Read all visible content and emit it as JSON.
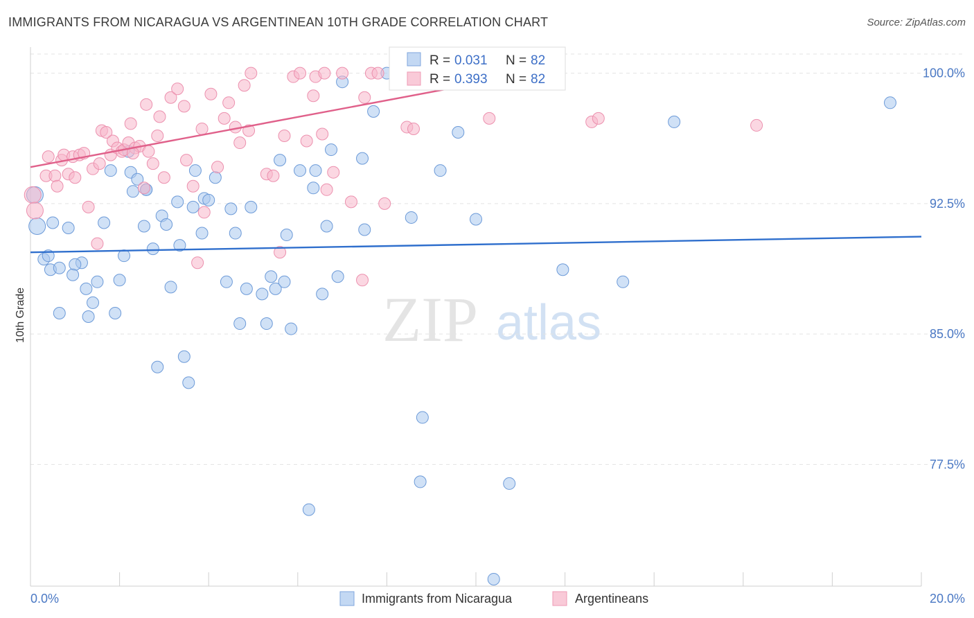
{
  "header": {
    "title": "IMMIGRANTS FROM NICARAGUA VS ARGENTINEAN 10TH GRADE CORRELATION CHART",
    "source": "Source: ZipAtlas.com"
  },
  "watermark": {
    "zip": "ZIP",
    "atlas": "atlas"
  },
  "legend_top": [
    {
      "r_label": "R =",
      "r_value": "0.031",
      "n_label": "N =",
      "n_value": "82"
    },
    {
      "r_label": "R =",
      "r_value": "0.393",
      "n_label": "N =",
      "n_value": "82"
    }
  ],
  "legend_bottom": [
    "Immigrants from Nicaragua",
    "Argentineans"
  ],
  "chart_data": {
    "type": "scatter",
    "xlabel": "",
    "ylabel": "10th Grade",
    "xlim": [
      0,
      20
    ],
    "ylim": [
      70.5,
      101.5
    ],
    "x_tick_labels": [
      "0.0%",
      "20.0%"
    ],
    "y_ticks": [
      77.5,
      85.0,
      92.5,
      100.0
    ],
    "y_tick_labels": [
      "77.5%",
      "85.0%",
      "92.5%",
      "100.0%"
    ],
    "colors": {
      "nicaragua": "#a9c8ee",
      "nicaragua_line": "#2f6fcd",
      "argentinean": "#f7b7cb",
      "argentinean_line": "#e0608a"
    },
    "series": [
      {
        "name": "Immigrants from Nicaragua",
        "trend": [
          [
            0,
            89.7
          ],
          [
            20,
            90.6
          ]
        ],
        "points": [
          [
            0.1,
            93.0
          ],
          [
            0.15,
            91.2
          ],
          [
            0.3,
            89.3
          ],
          [
            0.4,
            89.5
          ],
          [
            0.5,
            91.4
          ],
          [
            0.45,
            88.7
          ],
          [
            0.65,
            88.8
          ],
          [
            0.85,
            91.1
          ],
          [
            1.15,
            89.1
          ],
          [
            1.25,
            87.6
          ],
          [
            1.5,
            88.0
          ],
          [
            1.65,
            91.4
          ],
          [
            1.8,
            94.4
          ],
          [
            2.0,
            88.1
          ],
          [
            2.1,
            89.5
          ],
          [
            2.2,
            95.5
          ],
          [
            2.25,
            94.3
          ],
          [
            2.3,
            93.2
          ],
          [
            2.4,
            93.9
          ],
          [
            2.55,
            91.2
          ],
          [
            2.6,
            93.3
          ],
          [
            2.75,
            89.9
          ],
          [
            2.95,
            91.8
          ],
          [
            3.05,
            91.3
          ],
          [
            3.15,
            87.7
          ],
          [
            3.3,
            92.6
          ],
          [
            3.35,
            90.1
          ],
          [
            3.65,
            92.3
          ],
          [
            3.7,
            94.4
          ],
          [
            3.85,
            90.8
          ],
          [
            3.9,
            92.8
          ],
          [
            4.0,
            92.7
          ],
          [
            4.15,
            94.0
          ],
          [
            4.4,
            88.0
          ],
          [
            4.5,
            92.2
          ],
          [
            4.6,
            90.8
          ],
          [
            4.7,
            85.6
          ],
          [
            4.85,
            87.6
          ],
          [
            4.95,
            92.3
          ],
          [
            5.2,
            87.3
          ],
          [
            5.3,
            85.6
          ],
          [
            5.4,
            88.3
          ],
          [
            5.5,
            87.6
          ],
          [
            5.6,
            95.0
          ],
          [
            5.7,
            88.0
          ],
          [
            5.75,
            90.7
          ],
          [
            5.85,
            85.3
          ],
          [
            6.05,
            94.4
          ],
          [
            6.35,
            93.4
          ],
          [
            6.4,
            94.4
          ],
          [
            6.55,
            87.3
          ],
          [
            6.65,
            91.2
          ],
          [
            6.75,
            95.6
          ],
          [
            6.9,
            88.3
          ],
          [
            7.0,
            99.5
          ],
          [
            7.45,
            95.1
          ],
          [
            7.5,
            91.0
          ],
          [
            7.7,
            97.8
          ],
          [
            8.0,
            100.0
          ],
          [
            8.55,
            91.7
          ],
          [
            8.8,
            80.2
          ],
          [
            8.75,
            76.5
          ],
          [
            9.2,
            94.4
          ],
          [
            9.6,
            96.6
          ],
          [
            10.0,
            91.6
          ],
          [
            10.4,
            70.9
          ],
          [
            10.75,
            76.4
          ],
          [
            11.95,
            88.7
          ],
          [
            13.3,
            88.0
          ],
          [
            14.45,
            97.2
          ],
          [
            19.3,
            98.3
          ],
          [
            1.0,
            89.0
          ],
          [
            0.65,
            86.2
          ],
          [
            1.3,
            86.0
          ],
          [
            1.9,
            86.2
          ],
          [
            2.85,
            83.1
          ],
          [
            3.45,
            83.7
          ],
          [
            3.55,
            82.2
          ],
          [
            1.4,
            86.8
          ],
          [
            6.25,
            74.9
          ],
          [
            0.95,
            88.4
          ],
          [
            2.6,
            93.3
          ]
        ]
      },
      {
        "name": "Argentineans",
        "trend": [
          [
            0,
            94.6
          ],
          [
            11.25,
            100.0
          ]
        ],
        "points": [
          [
            0.05,
            93.0
          ],
          [
            0.1,
            92.1
          ],
          [
            0.35,
            94.1
          ],
          [
            0.55,
            94.1
          ],
          [
            0.6,
            93.5
          ],
          [
            0.7,
            95.0
          ],
          [
            0.75,
            95.3
          ],
          [
            0.85,
            94.2
          ],
          [
            0.95,
            95.2
          ],
          [
            1.1,
            95.3
          ],
          [
            1.2,
            95.4
          ],
          [
            1.3,
            92.3
          ],
          [
            1.4,
            94.5
          ],
          [
            1.5,
            90.2
          ],
          [
            1.55,
            94.8
          ],
          [
            1.6,
            96.7
          ],
          [
            1.7,
            96.6
          ],
          [
            1.8,
            95.3
          ],
          [
            1.85,
            96.1
          ],
          [
            1.95,
            95.7
          ],
          [
            2.05,
            95.5
          ],
          [
            2.1,
            95.6
          ],
          [
            2.2,
            96.0
          ],
          [
            2.25,
            97.1
          ],
          [
            2.35,
            95.7
          ],
          [
            2.45,
            95.8
          ],
          [
            2.55,
            93.4
          ],
          [
            2.6,
            98.2
          ],
          [
            2.65,
            95.5
          ],
          [
            2.75,
            94.8
          ],
          [
            2.85,
            96.4
          ],
          [
            2.9,
            97.5
          ],
          [
            3.0,
            94.0
          ],
          [
            3.15,
            98.6
          ],
          [
            3.3,
            99.1
          ],
          [
            3.45,
            98.1
          ],
          [
            3.5,
            95.0
          ],
          [
            3.65,
            93.5
          ],
          [
            3.75,
            89.1
          ],
          [
            3.85,
            96.8
          ],
          [
            3.9,
            92.0
          ],
          [
            4.05,
            98.8
          ],
          [
            4.2,
            94.6
          ],
          [
            4.35,
            97.4
          ],
          [
            4.45,
            98.3
          ],
          [
            4.6,
            96.9
          ],
          [
            4.7,
            96.0
          ],
          [
            4.8,
            99.3
          ],
          [
            4.9,
            96.7
          ],
          [
            4.95,
            100.0
          ],
          [
            5.3,
            94.2
          ],
          [
            5.45,
            94.1
          ],
          [
            5.6,
            89.7
          ],
          [
            5.7,
            96.4
          ],
          [
            5.9,
            99.8
          ],
          [
            6.05,
            100.0
          ],
          [
            6.2,
            96.1
          ],
          [
            6.35,
            98.7
          ],
          [
            6.4,
            99.8
          ],
          [
            6.55,
            96.5
          ],
          [
            6.6,
            100.0
          ],
          [
            6.65,
            93.3
          ],
          [
            6.8,
            94.3
          ],
          [
            7.0,
            100.0
          ],
          [
            7.2,
            92.6
          ],
          [
            7.45,
            88.1
          ],
          [
            7.5,
            98.6
          ],
          [
            7.65,
            100.0
          ],
          [
            7.8,
            100.0
          ],
          [
            7.95,
            92.5
          ],
          [
            8.3,
            100.0
          ],
          [
            8.45,
            96.9
          ],
          [
            8.6,
            96.8
          ],
          [
            9.05,
            100.0
          ],
          [
            9.6,
            100.0
          ],
          [
            10.3,
            97.4
          ],
          [
            12.6,
            97.2
          ],
          [
            12.75,
            97.4
          ],
          [
            16.3,
            97.0
          ],
          [
            0.4,
            95.2
          ],
          [
            1.0,
            94.0
          ],
          [
            2.3,
            95.4
          ]
        ]
      }
    ]
  }
}
